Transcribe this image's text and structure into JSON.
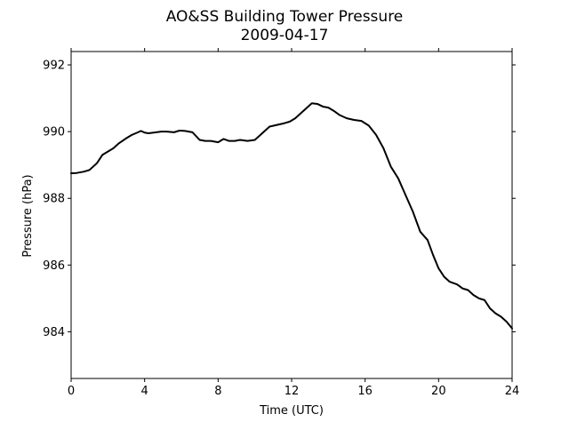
{
  "chart_data": {
    "type": "line",
    "title": "AO&SS Building Tower Pressure",
    "subtitle": "2009-04-17",
    "xlabel": "Time (UTC)",
    "ylabel": "Pressure (hPa)",
    "xlim": [
      0,
      24
    ],
    "ylim": [
      982.6,
      992.4
    ],
    "xticks": [
      0,
      4,
      8,
      12,
      16,
      20,
      24
    ],
    "yticks": [
      984,
      986,
      988,
      990,
      992
    ],
    "grid": false,
    "line_color": "#000000",
    "series": [
      {
        "x": [
          0,
          0.3,
          0.7,
          1.0,
          1.4,
          1.7,
          2.0,
          2.3,
          2.6,
          3.0,
          3.3,
          3.6,
          3.8,
          4.0,
          4.2,
          4.5,
          4.9,
          5.2,
          5.6,
          5.9,
          6.2,
          6.6,
          7.0,
          7.3,
          7.6,
          8.0,
          8.3,
          8.6,
          8.9,
          9.2,
          9.6,
          10.0,
          10.4,
          10.8,
          11.2,
          11.6,
          11.9,
          12.2,
          12.5,
          12.8,
          13.1,
          13.4,
          13.7,
          14.0,
          14.3,
          14.6,
          15.0,
          15.4,
          15.8,
          16.2,
          16.6,
          17.0,
          17.4,
          17.8,
          18.2,
          18.6,
          19.0,
          19.4,
          19.7,
          20.0,
          20.3,
          20.6,
          21.0,
          21.3,
          21.6,
          21.9,
          22.2,
          22.5,
          22.8,
          23.1,
          23.4,
          23.7,
          24.0
        ],
        "y": [
          988.75,
          988.76,
          988.8,
          988.85,
          989.05,
          989.3,
          989.4,
          989.5,
          989.65,
          989.8,
          989.9,
          989.97,
          990.02,
          989.97,
          989.95,
          989.97,
          990.0,
          990.0,
          989.98,
          990.03,
          990.02,
          989.98,
          989.75,
          989.72,
          989.72,
          989.68,
          989.78,
          989.72,
          989.72,
          989.75,
          989.72,
          989.75,
          989.95,
          990.15,
          990.2,
          990.25,
          990.3,
          990.4,
          990.55,
          990.7,
          990.85,
          990.83,
          990.75,
          990.72,
          990.62,
          990.5,
          990.4,
          990.35,
          990.32,
          990.18,
          989.9,
          989.5,
          988.95,
          988.6,
          988.1,
          987.6,
          987.0,
          986.75,
          986.3,
          985.9,
          985.65,
          985.5,
          985.42,
          985.3,
          985.25,
          985.1,
          985.0,
          984.95,
          984.7,
          984.55,
          984.45,
          984.3,
          984.1
        ]
      }
    ]
  }
}
